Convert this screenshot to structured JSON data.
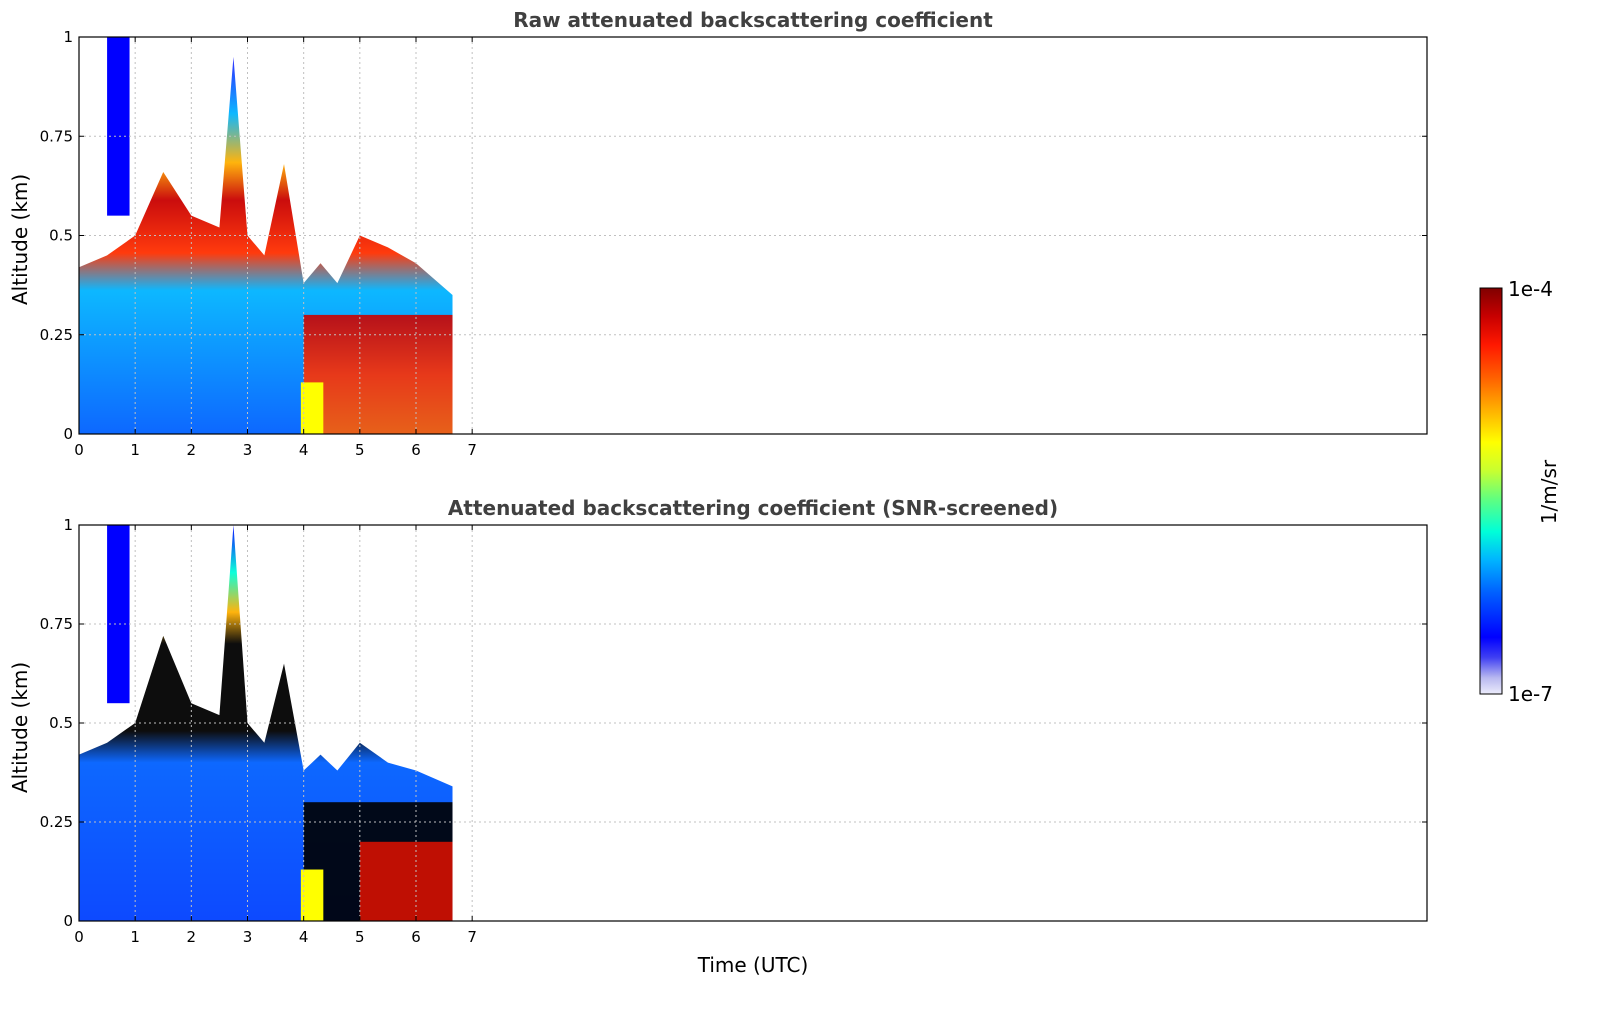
{
  "chart_data": [
    {
      "type": "heatmap",
      "title": "Raw attenuated backscattering coefficient",
      "xlabel": "",
      "ylabel": "Altitude (km)",
      "xlim": [
        0,
        24
      ],
      "ylim": [
        0,
        1
      ],
      "x_ticks": [
        "0",
        "1",
        "2",
        "3",
        "4",
        "5",
        "6",
        "7"
      ],
      "y_ticks": [
        "0",
        "0.25",
        "0.5",
        "0.75",
        "1"
      ],
      "grid": true,
      "data_extent_hours": [
        0,
        6.65
      ],
      "layer_top_km": [
        [
          0.0,
          0.42
        ],
        [
          0.5,
          0.45
        ],
        [
          1.0,
          0.5
        ],
        [
          1.5,
          0.66
        ],
        [
          2.0,
          0.55
        ],
        [
          2.5,
          0.52
        ],
        [
          2.75,
          0.95
        ],
        [
          3.0,
          0.5
        ],
        [
          3.3,
          0.45
        ],
        [
          3.65,
          0.68
        ],
        [
          4.0,
          0.38
        ],
        [
          4.3,
          0.43
        ],
        [
          4.6,
          0.38
        ],
        [
          5.0,
          0.5
        ],
        [
          5.5,
          0.47
        ],
        [
          6.0,
          0.43
        ],
        [
          6.65,
          0.35
        ]
      ],
      "scale": "log"
    },
    {
      "type": "heatmap",
      "title": "Attenuated backscattering coefficient (SNR-screened)",
      "xlabel": "Time (UTC)",
      "ylabel": "Altitude (km)",
      "xlim": [
        0,
        24
      ],
      "ylim": [
        0,
        1
      ],
      "x_ticks": [
        "0",
        "1",
        "2",
        "3",
        "4",
        "5",
        "6",
        "7"
      ],
      "y_ticks": [
        "0",
        "0.25",
        "0.5",
        "0.75",
        "1"
      ],
      "grid": true,
      "data_extent_hours": [
        0,
        6.65
      ],
      "layer_top_km": [
        [
          0.0,
          0.42
        ],
        [
          0.5,
          0.45
        ],
        [
          1.0,
          0.5
        ],
        [
          1.5,
          0.72
        ],
        [
          2.0,
          0.55
        ],
        [
          2.5,
          0.52
        ],
        [
          2.75,
          1.0
        ],
        [
          3.0,
          0.5
        ],
        [
          3.3,
          0.45
        ],
        [
          3.65,
          0.65
        ],
        [
          4.0,
          0.38
        ],
        [
          4.3,
          0.42
        ],
        [
          4.6,
          0.38
        ],
        [
          5.0,
          0.45
        ],
        [
          5.5,
          0.4
        ],
        [
          6.0,
          0.38
        ],
        [
          6.65,
          0.34
        ]
      ],
      "scale": "log"
    }
  ],
  "colorbar": {
    "label": "1/m/sr",
    "max_label": "1e-4",
    "min_label": "1e-7",
    "colors": [
      "#ececfb",
      "#b8b8f0",
      "#3f3ff2",
      "#0000ff",
      "#0060ff",
      "#00b4ff",
      "#00ffd8",
      "#60ff80",
      "#c8ff30",
      "#ffff00",
      "#ffb000",
      "#ff6000",
      "#ff1800",
      "#c80000",
      "#800000"
    ]
  },
  "panels": {
    "top_title": "Raw attenuated backscattering coefficient",
    "bottom_title": "Attenuated backscattering coefficient (SNR-screened)",
    "ylabel": "Altitude (km)",
    "xlabel": "Time (UTC)"
  }
}
